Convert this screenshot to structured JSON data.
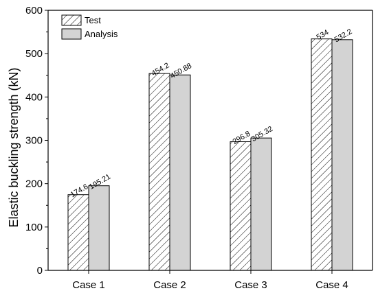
{
  "chart_data": {
    "type": "bar",
    "categories": [
      "Case 1",
      "Case 2",
      "Case 3",
      "Case 4"
    ],
    "series": [
      {
        "name": "Test",
        "values": [
          174.6,
          454.2,
          296.8,
          534
        ],
        "labels": [
          "174.6",
          "454.2",
          "296.8",
          "534"
        ],
        "fill": "hatch"
      },
      {
        "name": "Analysis",
        "values": [
          195.21,
          450.88,
          305.32,
          532.2
        ],
        "labels": [
          "195.21",
          "450.88",
          "305.32",
          "532.2"
        ],
        "fill": "#d3d3d3"
      }
    ],
    "title": "",
    "xlabel": "",
    "ylabel": "Elastic buckling strength (kN)",
    "ylim": [
      0,
      600
    ],
    "yticks": [
      0,
      100,
      200,
      300,
      400,
      500,
      600
    ],
    "grid": false,
    "legend_position": "top-left"
  }
}
